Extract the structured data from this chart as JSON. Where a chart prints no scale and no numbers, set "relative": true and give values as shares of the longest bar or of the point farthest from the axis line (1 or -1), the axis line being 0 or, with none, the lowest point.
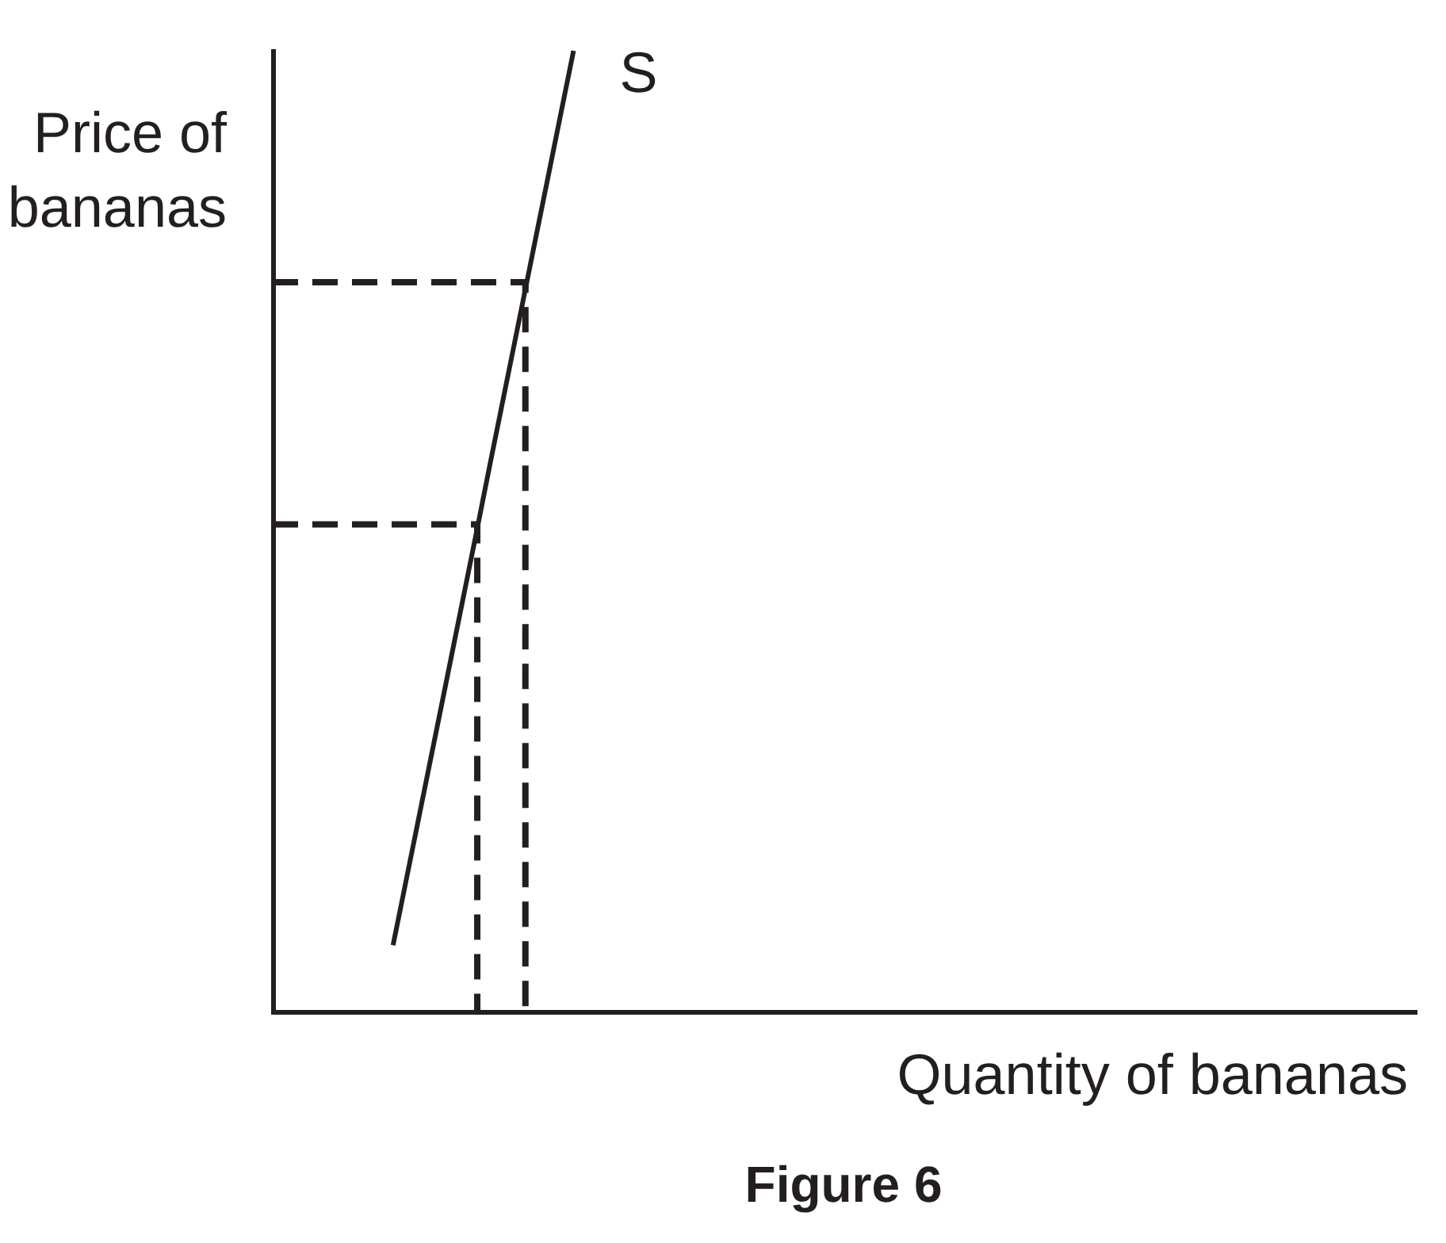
{
  "chart_data": {
    "type": "line",
    "title": "Figure 6",
    "xlabel": "Quantity of bananas",
    "ylabel": "Price of bananas",
    "relative": true,
    "tick_labels": false,
    "grid": false,
    "legend": false,
    "marker": "none",
    "categories": [
      null,
      null,
      null,
      null,
      null,
      null,
      null,
      null,
      null,
      null,
      null,
      null,
      null,
      null,
      null,
      null,
      null,
      null,
      null,
      null,
      null,
      null,
      null,
      null,
      null,
      null,
      null,
      null,
      null,
      null,
      null,
      null,
      null,
      null,
      null,
      null,
      null,
      null,
      null,
      null,
      null,
      null,
      null,
      null,
      null,
      null,
      null,
      null,
      null,
      null,
      null,
      null,
      null,
      null,
      null,
      null,
      null,
      null,
      null,
      null,
      null,
      null,
      null,
      null,
      null,
      null,
      null,
      null,
      null,
      null,
      null,
      null,
      null,
      null,
      null,
      null,
      null,
      null,
      null,
      null,
      null,
      null,
      null,
      null,
      null,
      null,
      null,
      null,
      null,
      null,
      null,
      null,
      null,
      null,
      null,
      null
    ],
    "series": [
      {
        "name": "S",
        "color": "#231f20",
        "values": [
          null,
          null,
          null,
          null,
          null,
          null,
          null,
          null,
          null,
          null,
          0.069,
          0.131,
          0.193,
          0.255,
          0.317,
          0.379,
          0.441,
          0.503,
          0.566,
          0.628,
          0.69,
          0.752,
          0.814,
          0.876,
          0.938,
          1,
          null,
          null,
          null,
          null,
          null,
          null,
          null,
          null,
          null,
          null,
          null,
          null,
          null,
          null,
          null,
          null,
          null,
          null,
          null,
          null,
          null,
          null,
          null,
          null,
          null,
          null,
          null,
          null,
          null,
          null,
          null,
          null,
          null,
          null,
          null,
          null,
          null,
          null,
          null,
          null,
          null,
          null,
          null,
          null,
          null,
          null,
          null,
          null,
          null,
          null,
          null,
          null,
          null,
          null,
          null,
          null,
          null,
          null,
          null,
          null,
          null,
          null,
          null,
          null,
          null,
          null,
          null,
          null,
          null,
          null
        ]
      },
      {
        "type": "step",
        "color": "#231f20",
        "line_style": "dashed",
        "values": [
          0.759,
          0.759,
          0.759,
          0.759,
          0.759,
          0.759,
          0.759,
          0.759,
          0.759,
          0.759,
          0.759,
          0.759,
          0.759,
          0.759,
          0.759,
          0.759,
          0.759,
          0.759,
          0.759,
          0.759,
          0.759,
          0,
          null,
          null,
          null,
          null,
          null,
          null,
          null,
          null,
          null,
          null,
          null,
          null,
          null,
          null,
          null,
          null,
          null,
          null,
          null,
          null,
          null,
          null,
          null,
          null,
          null,
          null,
          null,
          null,
          null,
          null,
          null,
          null,
          null,
          null,
          null,
          null,
          null,
          null,
          null,
          null,
          null,
          null,
          null,
          null,
          null,
          null,
          null,
          null,
          null,
          null,
          null,
          null,
          null,
          null,
          null,
          null,
          null,
          null,
          null,
          null,
          null,
          null,
          null,
          null,
          null,
          null,
          null,
          null,
          null,
          null,
          null,
          null,
          null,
          null
        ]
      },
      {
        "type": "step",
        "color": "#231f20",
        "line_style": "dashed",
        "values": [
          0.507,
          0.507,
          0.507,
          0.507,
          0.507,
          0.507,
          0.507,
          0.507,
          0.507,
          0.507,
          0.507,
          0.507,
          0.507,
          0.507,
          0.507,
          0.507,
          0.507,
          0,
          null,
          null,
          null,
          null,
          null,
          null,
          null,
          null,
          null,
          null,
          null,
          null,
          null,
          null,
          null,
          null,
          null,
          null,
          null,
          null,
          null,
          null,
          null,
          null,
          null,
          null,
          null,
          null,
          null,
          null,
          null,
          null,
          null,
          null,
          null,
          null,
          null,
          null,
          null,
          null,
          null,
          null,
          null,
          null,
          null,
          null,
          null,
          null,
          null,
          null,
          null,
          null,
          null,
          null,
          null,
          null,
          null,
          null,
          null,
          null,
          null,
          null,
          null,
          null,
          null,
          null,
          null,
          null,
          null,
          null,
          null,
          null,
          null,
          null,
          null,
          null,
          null,
          null
        ]
      }
    ]
  }
}
